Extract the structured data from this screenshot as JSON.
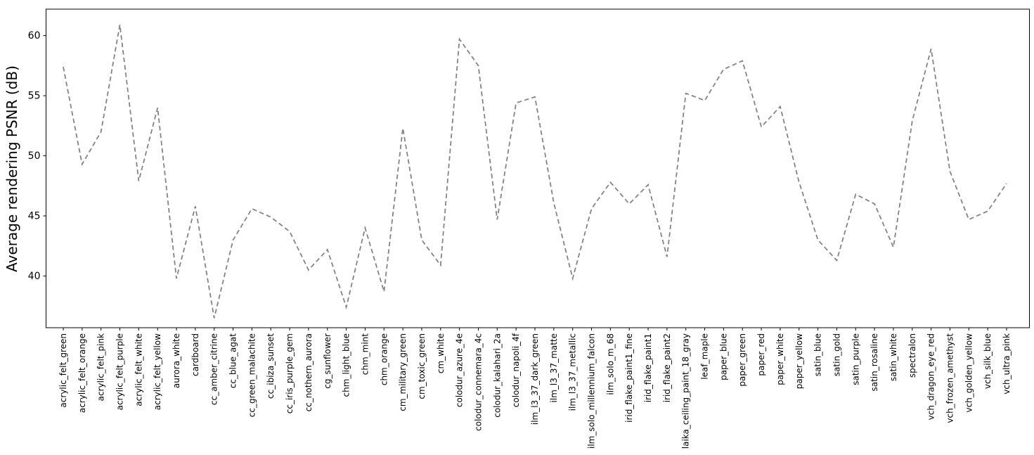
{
  "chart_data": {
    "type": "line",
    "title": "",
    "xlabel": "",
    "ylabel": "Average rendering PSNR (dB)",
    "ylim": [
      35.7,
      62.2
    ],
    "yticks": [
      40,
      45,
      50,
      55,
      60
    ],
    "grid": false,
    "legend": "none",
    "line_color": "#848484",
    "line_style": "dashed",
    "axis_color": "#000000",
    "background_color": "#ffffff",
    "categories": [
      "acrylic_felt_green",
      "acrylic_felt_orange",
      "acrylic_felt_pink",
      "acrylic_felt_purple",
      "acrylic_felt_white",
      "acrylic_felt_yellow",
      "aurora_white",
      "cardboard",
      "cc_amber_citrine",
      "cc_blue_agat",
      "cc_green_malachite",
      "cc_ibiza_sunset",
      "cc_iris_purple_gem",
      "cc_nothern_aurora",
      "cg_sunflower",
      "chm_light_blue",
      "chm_mint",
      "chm_orange",
      "cm_military_green",
      "cm_toxic_green",
      "cm_white",
      "colodur_azure_4e",
      "colodur_connemara_4c",
      "colodur_kalahari_2a",
      "colodur_napoli_4f",
      "ilm_l3_37_dark_green",
      "ilm_l3_37_matte",
      "ilm_l3_37_metallic",
      "ilm_solo_millennium_falcon",
      "ilm_solo_m_68",
      "irid_flake_paint1_fine",
      "irid_flake_paint1",
      "irid_flake_paint2",
      "laika_ceiling_paint_18_gray",
      "leaf_maple",
      "paper_blue",
      "paper_green",
      "paper_red",
      "paper_white",
      "paper_yellow",
      "satin_blue",
      "satin_gold",
      "satin_purple",
      "satin_rosaline",
      "satin_white",
      "spectralon",
      "vch_dragon_eye_red",
      "vch_frozen_amethyst",
      "vch_golden_yellow",
      "vch_silk_blue",
      "vch_ultra_pink"
    ],
    "values": [
      57.4,
      49.3,
      52.0,
      60.9,
      47.9,
      54.0,
      39.8,
      45.8,
      36.5,
      43.0,
      45.6,
      44.9,
      43.7,
      40.5,
      42.2,
      37.4,
      44.0,
      38.7,
      52.3,
      43.0,
      40.9,
      59.7,
      57.5,
      44.7,
      54.4,
      54.9,
      46.1,
      39.8,
      45.6,
      47.8,
      46.0,
      47.6,
      41.6,
      55.2,
      54.6,
      57.2,
      57.9,
      52.4,
      54.1,
      47.8,
      43.0,
      41.3,
      46.8,
      46.0,
      42.4,
      52.9,
      58.9,
      48.7,
      44.7,
      45.4,
      47.7
    ]
  }
}
